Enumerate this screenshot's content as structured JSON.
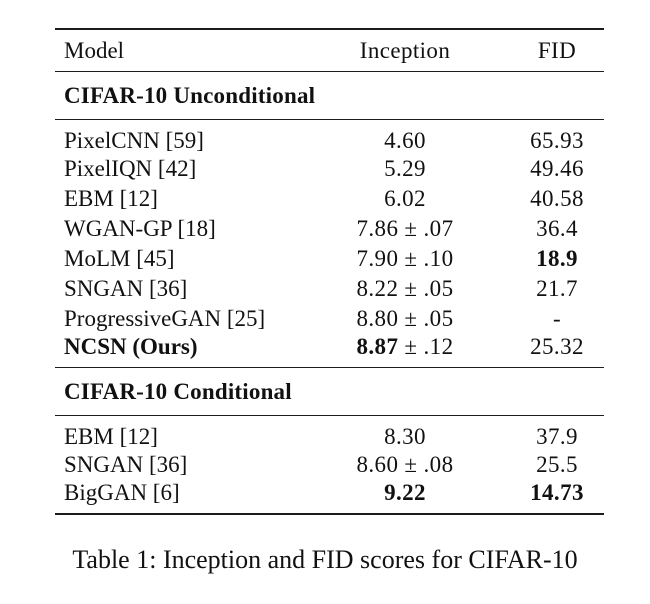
{
  "table": {
    "columns": [
      "Model",
      "Inception",
      "FID"
    ],
    "sections": [
      {
        "title": "CIFAR-10 Unconditional",
        "rows": [
          {
            "model": "PixelCNN [59]",
            "inception": "4.60",
            "pm": "",
            "fid": "65.93"
          },
          {
            "model": "PixelIQN [42]",
            "inception": "5.29",
            "pm": "",
            "fid": "49.46"
          },
          {
            "model": "EBM [12]",
            "inception": "6.02",
            "pm": "",
            "fid": "40.58"
          },
          {
            "model": "WGAN-GP [18]",
            "inception": "7.86",
            "pm": "± .07",
            "fid": "36.4"
          },
          {
            "model": "MoLM [45]",
            "inception": "7.90",
            "pm": "± .10",
            "fid": "18.9"
          },
          {
            "model": "SNGAN [36]",
            "inception": "8.22",
            "pm": "± .05",
            "fid": "21.7"
          },
          {
            "model": "ProgressiveGAN [25]",
            "inception": "8.80",
            "pm": "± .05",
            "fid": "-"
          },
          {
            "model": "NCSN (Ours)",
            "inception": "8.87",
            "pm": "± .12",
            "fid": "25.32"
          }
        ]
      },
      {
        "title": "CIFAR-10 Conditional",
        "rows": [
          {
            "model": "EBM [12]",
            "inception": "8.30",
            "pm": "",
            "fid": "37.9"
          },
          {
            "model": "SNGAN [36]",
            "inception": "8.60",
            "pm": "± .08",
            "fid": "25.5"
          },
          {
            "model": "BigGAN [6]",
            "inception": "9.22",
            "pm": "",
            "fid": "14.73"
          }
        ]
      }
    ]
  },
  "caption": "Table 1: Inception and FID scores for CIFAR-10",
  "colors": {
    "text": "#111111",
    "rule": "#1c1c1c",
    "background": "#ffffff"
  }
}
